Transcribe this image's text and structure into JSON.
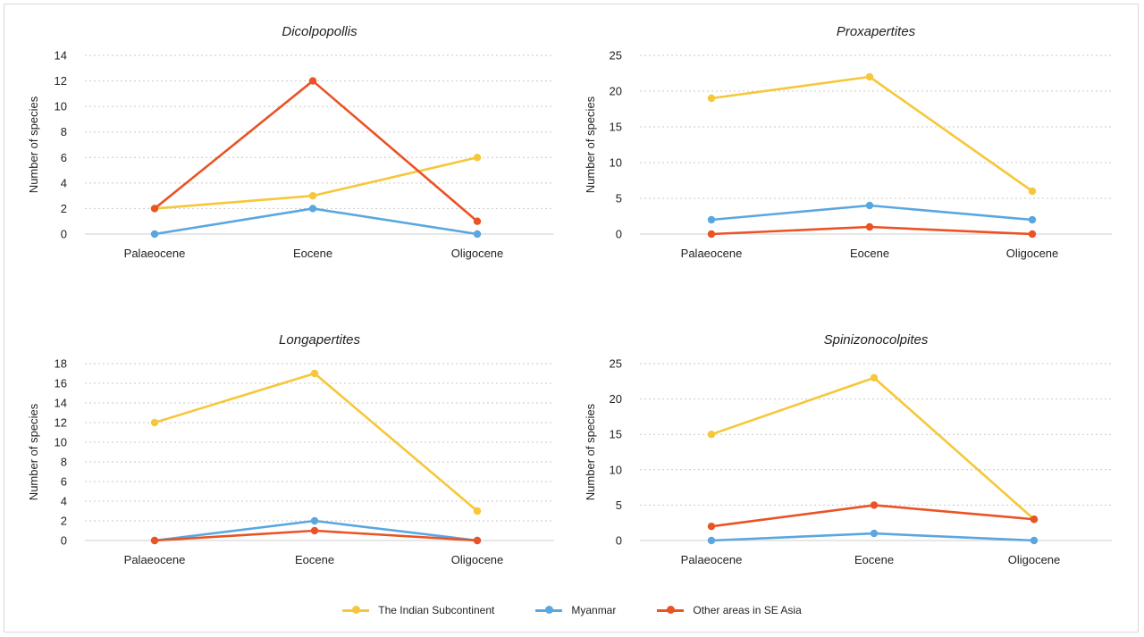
{
  "series_meta": [
    {
      "name": "The Indian Subcontinent",
      "color": "#f6c739"
    },
    {
      "name": "Myanmar",
      "color": "#5aa7df"
    },
    {
      "name": "Other areas in SE Asia",
      "color": "#ea5325"
    }
  ],
  "chart_data": [
    {
      "type": "line",
      "title": "Dicolpopollis",
      "ylabel": "Number of species",
      "categories": [
        "Palaeocene",
        "Eocene",
        "Oligocene"
      ],
      "ylim": [
        0,
        14
      ],
      "yticks": [
        0,
        2,
        4,
        6,
        8,
        10,
        12,
        14
      ],
      "grid": true,
      "series": [
        {
          "name": "The Indian Subcontinent",
          "values": [
            2,
            3,
            6
          ]
        },
        {
          "name": "Myanmar",
          "values": [
            0,
            2,
            0
          ]
        },
        {
          "name": "Other areas in SE Asia",
          "values": [
            2,
            12,
            1
          ]
        }
      ]
    },
    {
      "type": "line",
      "title": "Proxapertites",
      "ylabel": "Number of species",
      "categories": [
        "Palaeocene",
        "Eocene",
        "Oligocene"
      ],
      "ylim": [
        0,
        25
      ],
      "yticks": [
        0,
        5,
        10,
        15,
        20,
        25
      ],
      "grid": true,
      "series": [
        {
          "name": "The Indian Subcontinent",
          "values": [
            19,
            22,
            6
          ]
        },
        {
          "name": "Myanmar",
          "values": [
            2,
            4,
            2
          ]
        },
        {
          "name": "Other areas in SE Asia",
          "values": [
            0,
            1,
            0
          ]
        }
      ]
    },
    {
      "type": "line",
      "title": "Longapertites",
      "ylabel": "Number of species",
      "categories": [
        "Palaeocene",
        "Eocene",
        "Oligocene"
      ],
      "ylim": [
        0,
        18
      ],
      "yticks": [
        0,
        2,
        4,
        6,
        8,
        10,
        12,
        14,
        16,
        18
      ],
      "grid": true,
      "series": [
        {
          "name": "The Indian Subcontinent",
          "values": [
            12,
            17,
            3
          ]
        },
        {
          "name": "Myanmar",
          "values": [
            0,
            2,
            0
          ]
        },
        {
          "name": "Other areas in SE Asia",
          "values": [
            0,
            1,
            0
          ]
        }
      ]
    },
    {
      "type": "line",
      "title": "Spinizonocolpites",
      "ylabel": "Number of species",
      "categories": [
        "Palaeocene",
        "Eocene",
        "Oligocene"
      ],
      "ylim": [
        0,
        25
      ],
      "yticks": [
        0,
        5,
        10,
        15,
        20,
        25
      ],
      "grid": true,
      "series": [
        {
          "name": "The Indian Subcontinent",
          "values": [
            15,
            23,
            3
          ]
        },
        {
          "name": "Myanmar",
          "values": [
            0,
            1,
            0
          ]
        },
        {
          "name": "Other areas in SE Asia",
          "values": [
            2,
            5,
            3
          ]
        }
      ]
    }
  ]
}
